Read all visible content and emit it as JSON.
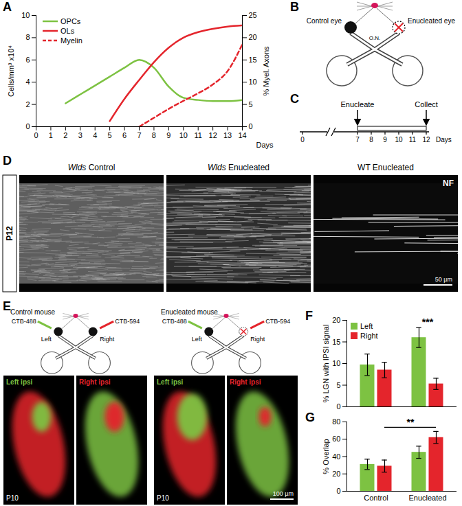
{
  "chart_data": [
    {
      "type": "line",
      "title": "A",
      "xlabel": "Days",
      "ylabel": "Cells/mm³ x10⁴",
      "y2label": "% Myel. Axons",
      "x": [
        2,
        3,
        4,
        5,
        6,
        7,
        8,
        9,
        10,
        11,
        12,
        13,
        14
      ],
      "xlim": [
        0,
        14
      ],
      "xticks": [
        0,
        1,
        2,
        3,
        4,
        5,
        6,
        7,
        8,
        9,
        10,
        11,
        12,
        13,
        14
      ],
      "ylim": [
        0,
        10
      ],
      "yticks": [
        0,
        2,
        4,
        6,
        8,
        10
      ],
      "y2lim": [
        0,
        25
      ],
      "y2ticks": [
        0,
        5,
        10,
        15,
        20,
        25
      ],
      "legend": "upper left",
      "series": [
        {
          "name": "OPCs",
          "color": "#7dc242",
          "values": [
            2.1,
            2.9,
            3.7,
            4.5,
            5.3,
            6.0,
            5.3,
            3.6,
            2.6,
            2.4,
            2.3,
            2.3,
            2.4
          ]
        },
        {
          "name": "OLs",
          "color": "#e4252c",
          "values": [
            null,
            null,
            null,
            0.5,
            2.5,
            4.2,
            5.8,
            7.1,
            8.0,
            8.5,
            8.8,
            9.0,
            9.1
          ]
        },
        {
          "name": "Myelin",
          "color": "#e4252c",
          "line_style": "dashed",
          "axis": "y2",
          "values": [
            null,
            null,
            null,
            null,
            null,
            0,
            2,
            4,
            5.8,
            7.5,
            9.5,
            12.5,
            18.5
          ]
        }
      ]
    },
    {
      "type": "bar",
      "title": "F",
      "ylabel": "% LGN with IPSI signal",
      "categories": [
        "Control",
        "Enucleated"
      ],
      "ylim": [
        0,
        20
      ],
      "yticks": [
        0,
        5,
        10,
        15,
        20
      ],
      "legend": "upper left",
      "tick_labels": "y",
      "series": [
        {
          "name": "Left",
          "color": "#7dc242",
          "values": [
            9.7,
            16.0
          ],
          "errors": [
            2.5,
            2.3
          ]
        },
        {
          "name": "Right",
          "color": "#e4252c",
          "values": [
            8.5,
            5.3
          ],
          "errors": [
            1.8,
            1.3
          ]
        }
      ],
      "annotations": [
        {
          "text": "***",
          "category": "Enucleated"
        }
      ]
    },
    {
      "type": "bar",
      "title": "G",
      "ylabel": "% Overlap",
      "categories": [
        "Control",
        "Enucleated"
      ],
      "ylim": [
        0,
        80
      ],
      "yticks": [
        0,
        20,
        40,
        60,
        80
      ],
      "series": [
        {
          "name": "Left",
          "color": "#7dc242",
          "values": [
            31,
            45
          ],
          "errors": [
            6,
            7
          ]
        },
        {
          "name": "Right",
          "color": "#e4252c",
          "values": [
            29,
            62
          ],
          "errors": [
            7,
            7
          ]
        }
      ],
      "annotations": [
        {
          "text": "**",
          "from": "Control",
          "to": "Enucleated",
          "series": "Right"
        }
      ]
    }
  ],
  "figure": {
    "B": {
      "title": "B",
      "control_eye": "Control eye",
      "enucleated_eye": "Enucleated eye",
      "nerve": "O.N."
    },
    "C": {
      "title": "C",
      "ticks": [
        0,
        7,
        8,
        9,
        10,
        11,
        12
      ],
      "xlabel": "Days",
      "events": [
        {
          "day": 7,
          "label": "Enucleate"
        },
        {
          "day": 12,
          "label": "Collect"
        }
      ]
    },
    "D": {
      "title": "D",
      "age": "P12",
      "stain": "NF",
      "scale_bar": "50 µm",
      "images": [
        {
          "genotype": "Wlds",
          "condition": "Control"
        },
        {
          "genotype": "Wlds",
          "condition": "Enucleated"
        },
        {
          "genotype": "WT",
          "condition": "Enucleated"
        }
      ]
    },
    "E": {
      "title": "E",
      "age": "P10",
      "scale_bar": "100 µm",
      "tracers": [
        {
          "name": "CTB-488",
          "color": "#7dc242"
        },
        {
          "name": "CTB-594",
          "color": "#e4252c"
        }
      ],
      "eyes": [
        "Left",
        "Right"
      ],
      "mice": [
        {
          "label": "Control mouse",
          "enucleated": false,
          "images": [
            "Left ipsi",
            "Right ipsi"
          ]
        },
        {
          "label": "Enucleated mouse",
          "enucleated": true,
          "images": [
            "Left ipsi",
            "Right ipsi"
          ]
        }
      ]
    }
  }
}
